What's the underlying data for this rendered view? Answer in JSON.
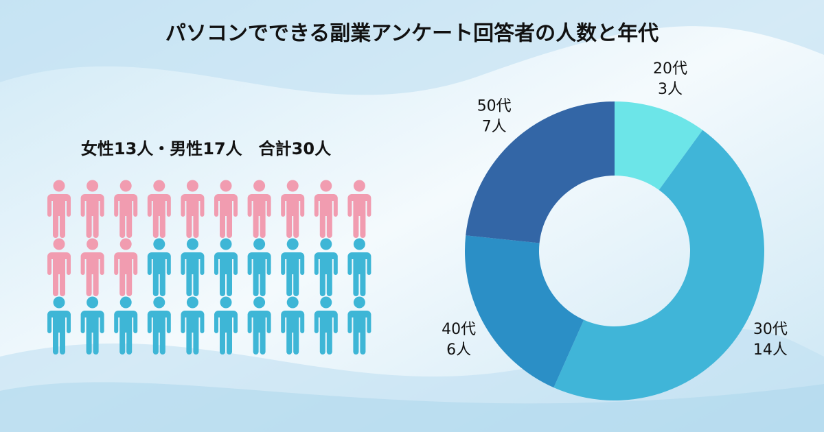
{
  "chart_data": [
    {
      "type": "pictogram",
      "title": "女性13人・男性17人　合計30人",
      "values": [
        13,
        17
      ],
      "colors": [
        "#f19cb0",
        "#3eb6d6"
      ],
      "per_row": 10
    },
    {
      "type": "donut",
      "title": "パソコンでできる副業アンケート回答者の人数と年代",
      "categories": [
        "20代",
        "30代",
        "40代",
        "50代"
      ],
      "values": [
        3,
        14,
        6,
        7
      ],
      "value_labels": [
        "3人",
        "14人",
        "6人",
        "7人"
      ],
      "colors": [
        "#6ce5e8",
        "#40b5d8",
        "#2b8fc6",
        "#3366a6"
      ]
    }
  ]
}
